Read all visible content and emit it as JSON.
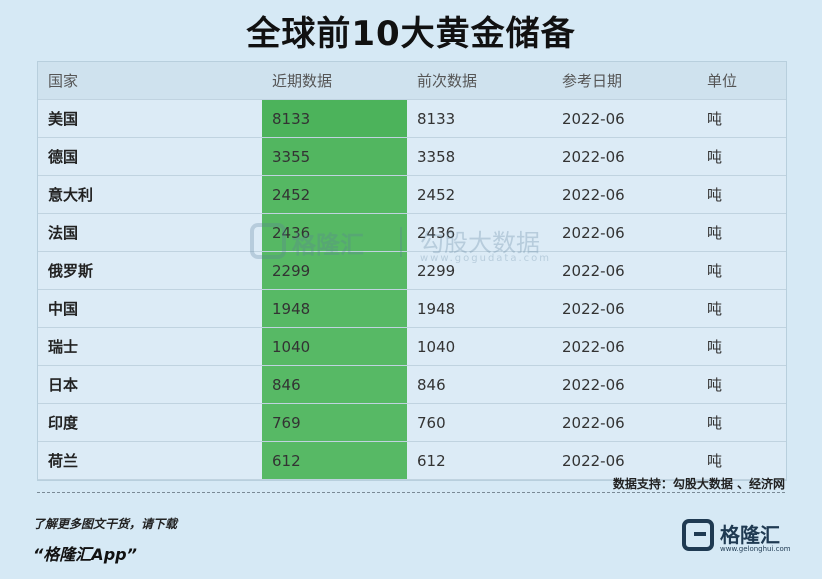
{
  "title": "全球前10大黄金储备",
  "table": {
    "headers": [
      "国家",
      "近期数据",
      "前次数据",
      "参考日期",
      "单位"
    ],
    "rows": [
      {
        "country": "美国",
        "recent": "8133",
        "previous": "8133",
        "date": "2022-06",
        "unit": "吨"
      },
      {
        "country": "德国",
        "recent": "3355",
        "previous": "3358",
        "date": "2022-06",
        "unit": "吨"
      },
      {
        "country": "意大利",
        "recent": "2452",
        "previous": "2452",
        "date": "2022-06",
        "unit": "吨"
      },
      {
        "country": "法国",
        "recent": "2436",
        "previous": "2436",
        "date": "2022-06",
        "unit": "吨"
      },
      {
        "country": "俄罗斯",
        "recent": "2299",
        "previous": "2299",
        "date": "2022-06",
        "unit": "吨"
      },
      {
        "country": "中国",
        "recent": "1948",
        "previous": "1948",
        "date": "2022-06",
        "unit": "吨"
      },
      {
        "country": "瑞士",
        "recent": "1040",
        "previous": "1040",
        "date": "2022-06",
        "unit": "吨"
      },
      {
        "country": "日本",
        "recent": "846",
        "previous": "846",
        "date": "2022-06",
        "unit": "吨"
      },
      {
        "country": "印度",
        "recent": "769",
        "previous": "760",
        "date": "2022-06",
        "unit": "吨"
      },
      {
        "country": "荷兰",
        "recent": "612",
        "previous": "612",
        "date": "2022-06",
        "unit": "吨"
      }
    ],
    "recent_colors": [
      "#4cb35b",
      "#52b660",
      "#55b863",
      "#56b864",
      "#57b965",
      "#57b965",
      "#57b965",
      "#57b965",
      "#57b965",
      "#57b965"
    ]
  },
  "watermark": {
    "name": "格隆汇",
    "sub": "勾股大数据",
    "url": "www.gogudata.com"
  },
  "source": "数据支持：勾股大数据 、经济网",
  "promo": {
    "line1": "了解更多图文干货，请下载",
    "line2": "“格隆汇App”"
  },
  "logo": {
    "name": "格隆汇",
    "url": "www.gelonghui.com"
  }
}
